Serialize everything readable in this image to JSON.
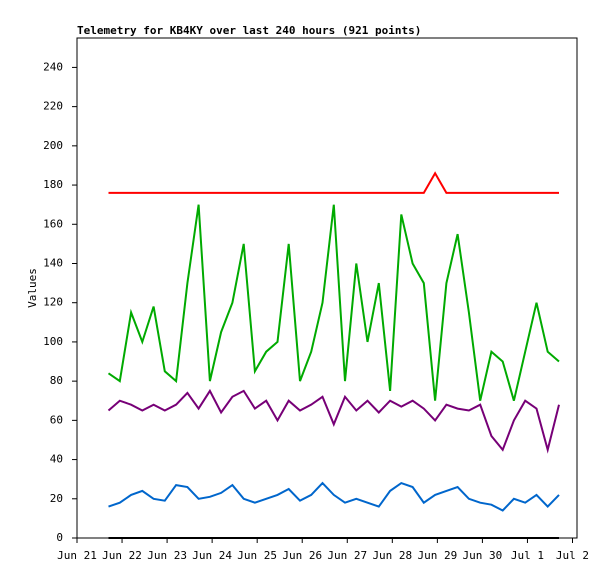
{
  "chart_data": {
    "type": "line",
    "title": "Telemetry for KB4KY over last 240 hours (921 points)",
    "y_label": "Values",
    "x": [
      0.7,
      0.95,
      1.2,
      1.45,
      1.7,
      1.95,
      2.2,
      2.45,
      2.7,
      2.95,
      3.2,
      3.45,
      3.7,
      3.95,
      4.2,
      4.45,
      4.7,
      4.95,
      5.2,
      5.45,
      5.7,
      5.95,
      6.2,
      6.45,
      6.7,
      6.95,
      7.2,
      7.45,
      7.7,
      7.95,
      8.2,
      8.45,
      8.7,
      8.95,
      9.2,
      9.45,
      9.7,
      9.95,
      10.2,
      10.45,
      10.7
    ],
    "series": [
      {
        "color": "#ff0000",
        "values": [
          176,
          176,
          176,
          176,
          176,
          176,
          176,
          176,
          176,
          176,
          176,
          176,
          176,
          176,
          176,
          176,
          176,
          176,
          176,
          176,
          176,
          176,
          176,
          176,
          176,
          176,
          176,
          176,
          176,
          186,
          176,
          176,
          176,
          176,
          176,
          176,
          176,
          176,
          176,
          176,
          176
        ]
      },
      {
        "color": "#00aa00",
        "values": [
          84,
          80,
          115,
          100,
          118,
          85,
          80,
          130,
          170,
          80,
          105,
          120,
          150,
          85,
          95,
          100,
          150,
          80,
          95,
          120,
          170,
          80,
          140,
          100,
          130,
          75,
          165,
          140,
          130,
          70,
          130,
          155,
          115,
          70,
          95,
          90,
          70,
          95,
          120,
          95,
          90
        ]
      },
      {
        "color": "#770077",
        "values": [
          65,
          70,
          68,
          65,
          68,
          65,
          68,
          74,
          66,
          75,
          64,
          72,
          75,
          66,
          70,
          60,
          70,
          65,
          68,
          72,
          58,
          72,
          65,
          70,
          64,
          70,
          67,
          70,
          66,
          60,
          68,
          66,
          65,
          68,
          52,
          45,
          60,
          70,
          66,
          45,
          68
        ]
      },
      {
        "color": "#0066cc",
        "values": [
          16,
          18,
          22,
          24,
          20,
          19,
          27,
          26,
          20,
          21,
          23,
          27,
          20,
          18,
          20,
          22,
          25,
          19,
          22,
          28,
          22,
          18,
          20,
          18,
          16,
          24,
          28,
          26,
          18,
          22,
          24,
          26,
          20,
          18,
          17,
          14,
          20,
          18,
          22,
          16,
          22
        ]
      },
      {
        "color": "#000000",
        "values": [
          0,
          0,
          0,
          0,
          0,
          0,
          0,
          0,
          0,
          0,
          0,
          0,
          0,
          0,
          0,
          0,
          0,
          0,
          0,
          0,
          0,
          0,
          0,
          0,
          0,
          0,
          0,
          0,
          0,
          0,
          0,
          0,
          0,
          0,
          0,
          0,
          0,
          0,
          0,
          0,
          0
        ]
      }
    ],
    "xlim": [
      0,
      11.1
    ],
    "xticks": [
      {
        "value": 0,
        "label": "Jun 21"
      },
      {
        "value": 1,
        "label": "Jun 22"
      },
      {
        "value": 2,
        "label": "Jun 23"
      },
      {
        "value": 3,
        "label": "Jun 24"
      },
      {
        "value": 4,
        "label": "Jun 25"
      },
      {
        "value": 5,
        "label": "Jun 26"
      },
      {
        "value": 6,
        "label": "Jun 27"
      },
      {
        "value": 7,
        "label": "Jun 28"
      },
      {
        "value": 8,
        "label": "Jun 29"
      },
      {
        "value": 9,
        "label": "Jun 30"
      },
      {
        "value": 10,
        "label": "Jul 1"
      },
      {
        "value": 11,
        "label": "Jul 2"
      }
    ],
    "ylim": [
      0,
      255
    ],
    "yticks": [
      0,
      20,
      40,
      60,
      80,
      100,
      120,
      140,
      160,
      180,
      200,
      220,
      240
    ],
    "grid": false
  }
}
